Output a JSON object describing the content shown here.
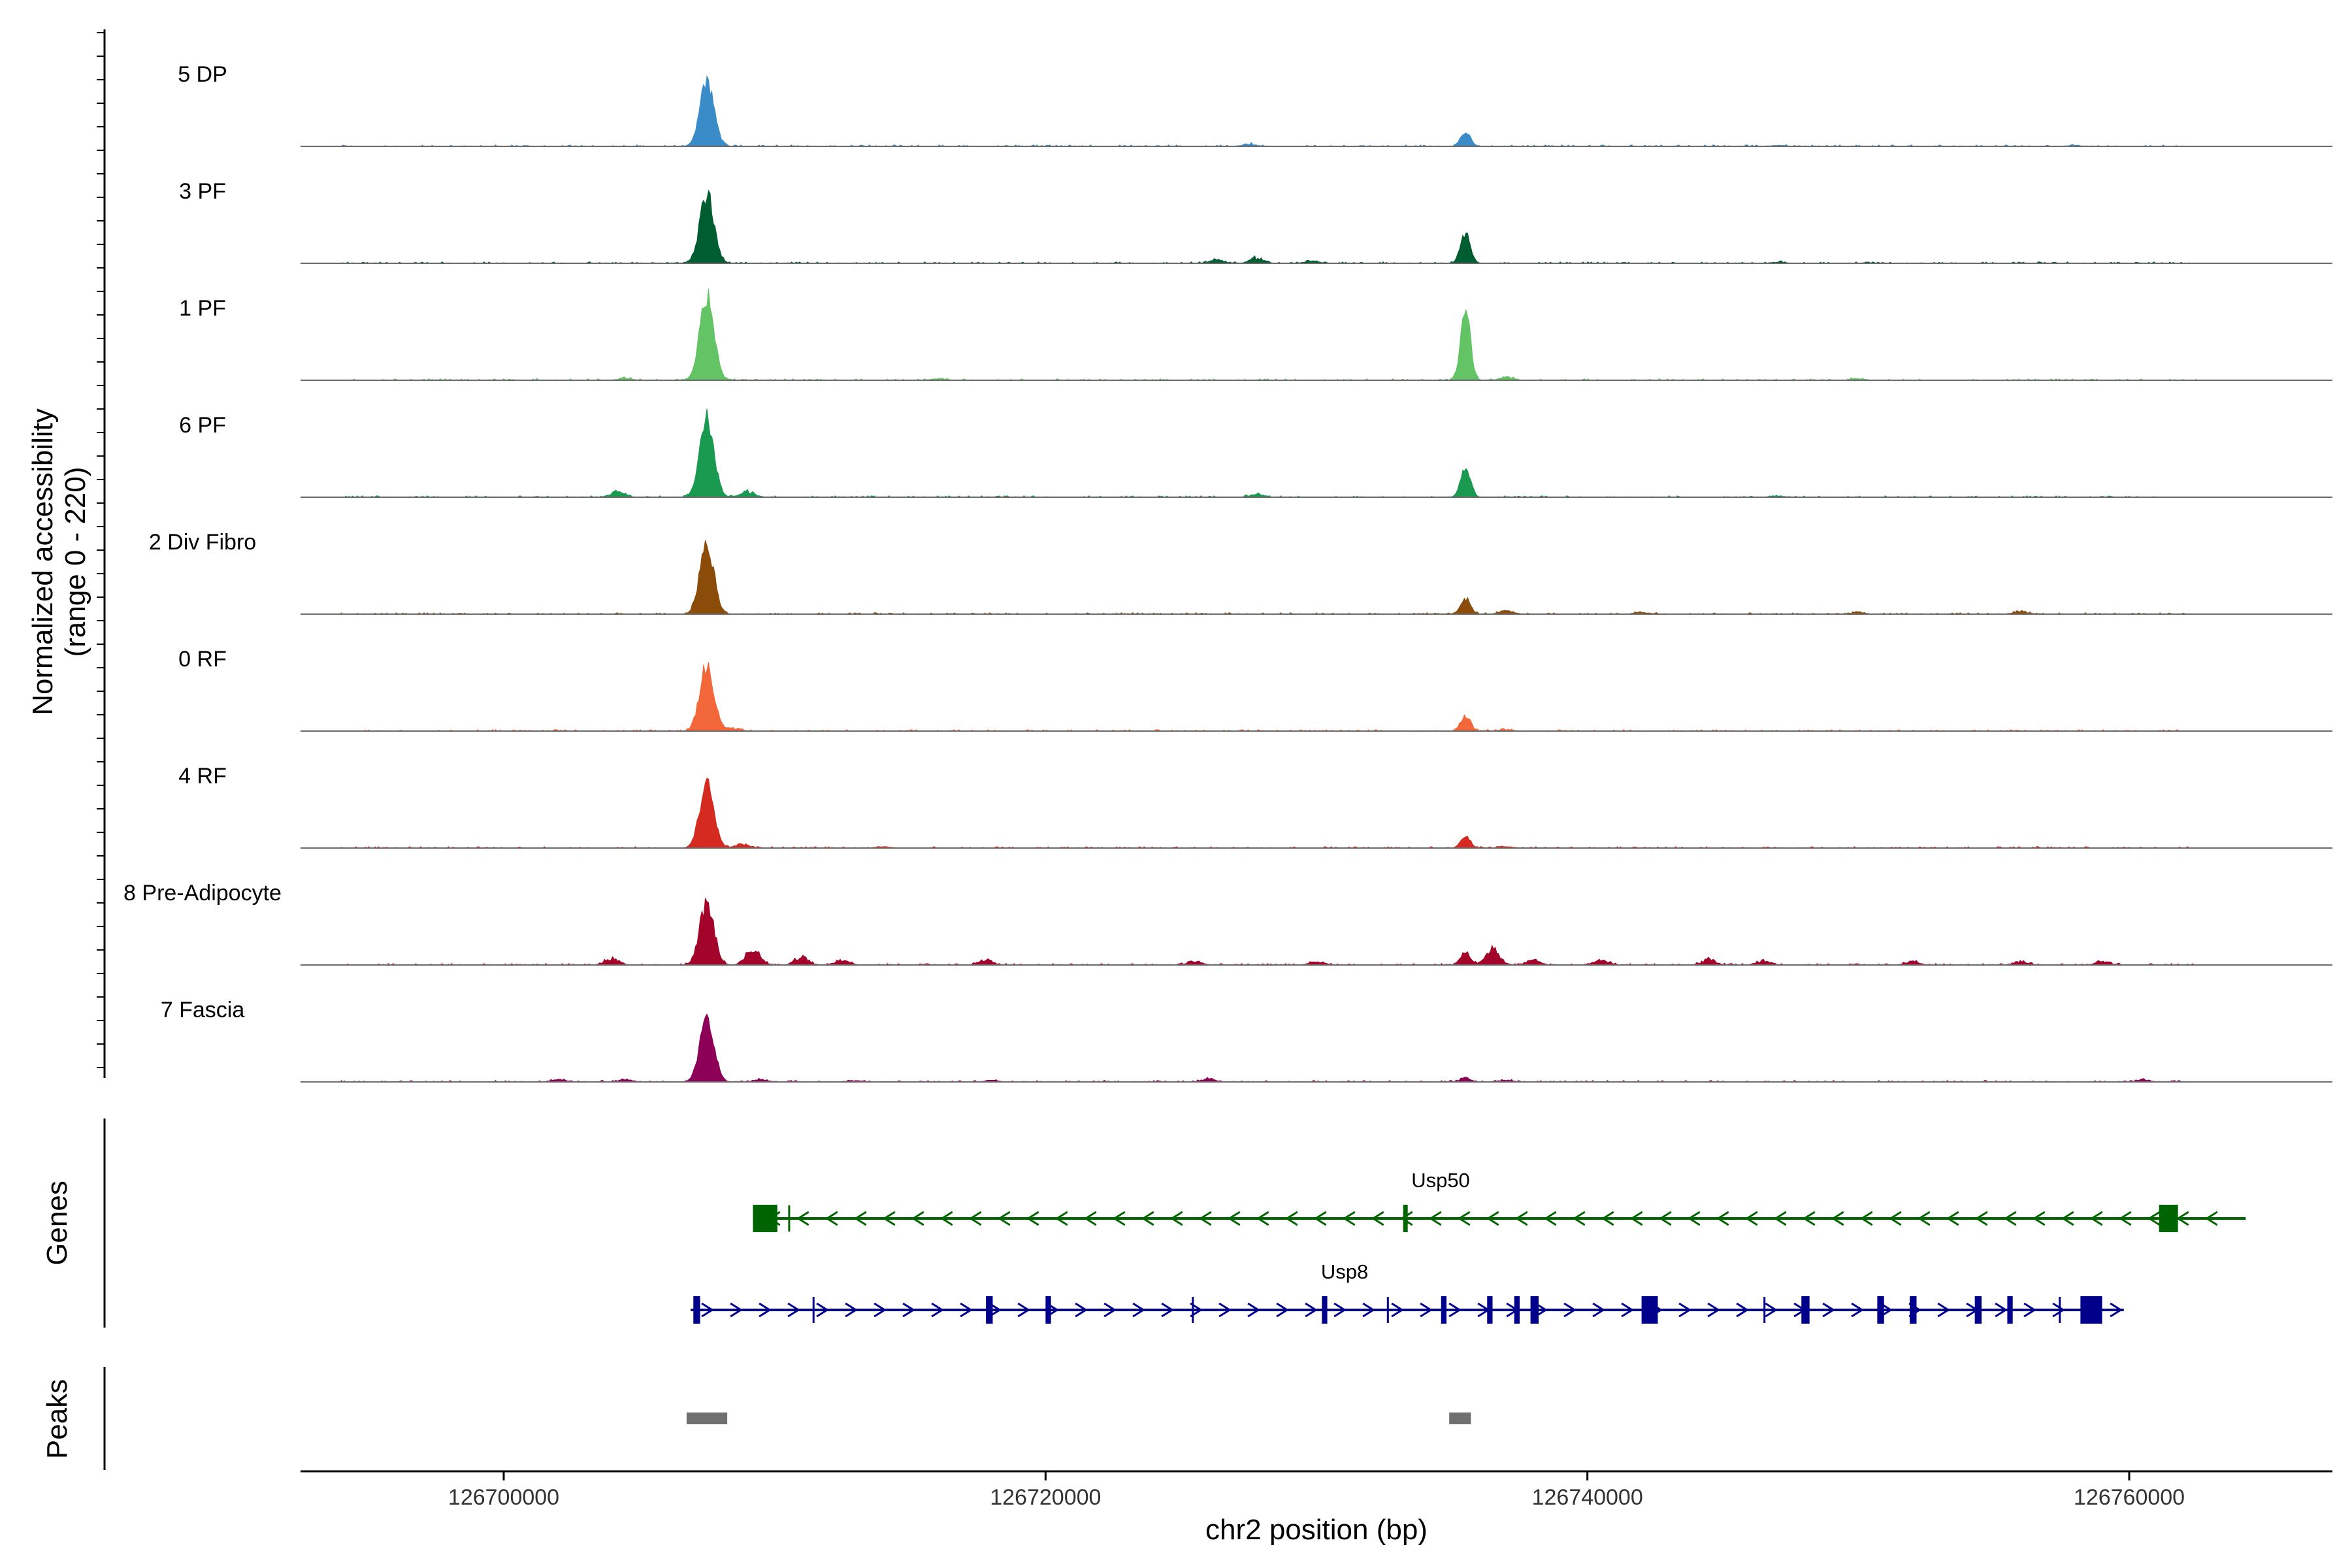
{
  "chart_data": {
    "type": "area",
    "description_kind": "coverage-plot",
    "chromosome": "chr2",
    "region": [
      126692500,
      126767500
    ],
    "xlabel": "chr2 position (bp)",
    "ylabel": [
      "Normalized accessibility",
      "(range 0 - 220)"
    ],
    "ylim": [
      0,
      220
    ],
    "xticks": [
      126700000,
      126720000,
      126740000,
      126760000
    ],
    "xtick_labels": [
      "126700000",
      "126720000",
      "126740000",
      "126760000"
    ],
    "peak_centers": [
      126707500,
      126735500
    ],
    "tracks": [
      {
        "name": "5 DP",
        "color": "#3A8CC8",
        "peak1": 150,
        "peak2": 34,
        "minor": [
          [
            126727500,
            6
          ],
          [
            126747000,
            3
          ],
          [
            126758000,
            3
          ]
        ]
      },
      {
        "name": "3 PF",
        "color": "#005C31",
        "peak1": 160,
        "peak2": 70,
        "minor": [
          [
            126726300,
            10
          ],
          [
            126727800,
            14
          ],
          [
            126729800,
            6
          ],
          [
            126747000,
            3
          ]
        ]
      },
      {
        "name": "1 PF",
        "color": "#62C464",
        "peak1": 195,
        "peak2": 160,
        "minor": [
          [
            126704500,
            5
          ],
          [
            126716000,
            4
          ],
          [
            126737000,
            8
          ],
          [
            126750000,
            4
          ]
        ]
      },
      {
        "name": "6 PF",
        "color": "#1A9951",
        "peak1": 180,
        "peak2": 70,
        "minor": [
          [
            126704200,
            14
          ],
          [
            126709000,
            16
          ],
          [
            126727800,
            8
          ],
          [
            126747000,
            4
          ],
          [
            126763000,
            4
          ]
        ]
      },
      {
        "name": "2 Div Fibro",
        "color": "#8B4C0A",
        "peak1": 160,
        "peak2": 36,
        "minor": [
          [
            126737000,
            8
          ],
          [
            126742000,
            5
          ],
          [
            126750000,
            5
          ],
          [
            126756000,
            8
          ]
        ]
      },
      {
        "name": "0 RF",
        "color": "#F2683A",
        "peak1": 155,
        "peak2": 35,
        "minor": [
          [
            126708500,
            8
          ],
          [
            126737000,
            4
          ]
        ]
      },
      {
        "name": "4 RF",
        "color": "#D42A20",
        "peak1": 150,
        "peak2": 25,
        "minor": [
          [
            126708800,
            10
          ],
          [
            126714000,
            4
          ],
          [
            126737000,
            4
          ]
        ]
      },
      {
        "name": "8 Pre-Adipocyte",
        "color": "#A3052A",
        "peak1": 145,
        "peak2": 30,
        "minor": [
          [
            126704000,
            18
          ],
          [
            126709200,
            45
          ],
          [
            126711000,
            20
          ],
          [
            126712500,
            14
          ],
          [
            126717800,
            14
          ],
          [
            126725500,
            10
          ],
          [
            126730000,
            10
          ],
          [
            126736500,
            40
          ],
          [
            126738000,
            14
          ],
          [
            126740500,
            14
          ],
          [
            126744500,
            14
          ],
          [
            126746500,
            12
          ],
          [
            126752000,
            10
          ],
          [
            126756000,
            10
          ],
          [
            126759000,
            10
          ]
        ]
      },
      {
        "name": "7 Fascia",
        "color": "#8C0157",
        "peak1": 150,
        "peak2": 10,
        "minor": [
          [
            126702000,
            6
          ],
          [
            126704500,
            6
          ],
          [
            126709500,
            6
          ],
          [
            126713000,
            4
          ],
          [
            126718000,
            4
          ],
          [
            126726000,
            8
          ],
          [
            126737000,
            4
          ],
          [
            126760500,
            6
          ],
          [
            126763000,
            6
          ]
        ]
      }
    ],
    "genes_track": {
      "title": "Genes",
      "genes": [
        {
          "name": "Usp50",
          "strand": "-",
          "color": "#006400",
          "start": 126709400,
          "end": 126764300,
          "exons": [
            [
              126709200,
              126710100,
              "big"
            ],
            [
              126710500,
              126710600,
              "thin"
            ],
            [
              126733200,
              126733350,
              "small"
            ],
            [
              126761100,
              126761800,
              "big"
            ]
          ]
        },
        {
          "name": "Usp8",
          "strand": "+",
          "color": "#00008B",
          "start": 126706900,
          "end": 126759800,
          "exons": [
            [
              126707000,
              126707250,
              "small"
            ],
            [
              126711400,
              126711550,
              "thin"
            ],
            [
              126717800,
              126718050,
              "small"
            ],
            [
              126720000,
              126720200,
              "small"
            ],
            [
              126725400,
              126725550,
              "thin"
            ],
            [
              126730200,
              126730400,
              "small"
            ],
            [
              126732600,
              126732750,
              "thin"
            ],
            [
              126734600,
              126734800,
              "small"
            ],
            [
              126736300,
              126736500,
              "small"
            ],
            [
              126737300,
              126737500,
              "small"
            ],
            [
              126737900,
              126738200,
              "small"
            ],
            [
              126742000,
              126742600,
              "big"
            ],
            [
              126746500,
              126746600,
              "thin"
            ],
            [
              126747900,
              126748200,
              "small"
            ],
            [
              126750700,
              126750950,
              "small"
            ],
            [
              126751900,
              126752150,
              "small"
            ],
            [
              126754300,
              126754550,
              "small"
            ],
            [
              126755500,
              126755700,
              "small"
            ],
            [
              126757400,
              126757500,
              "thin"
            ],
            [
              126758200,
              126759000,
              "big"
            ]
          ]
        }
      ]
    },
    "peaks_track": {
      "title": "Peaks",
      "color": "#707070",
      "peaks": [
        [
          126706750,
          126708250
        ],
        [
          126734900,
          126735700
        ]
      ]
    }
  }
}
